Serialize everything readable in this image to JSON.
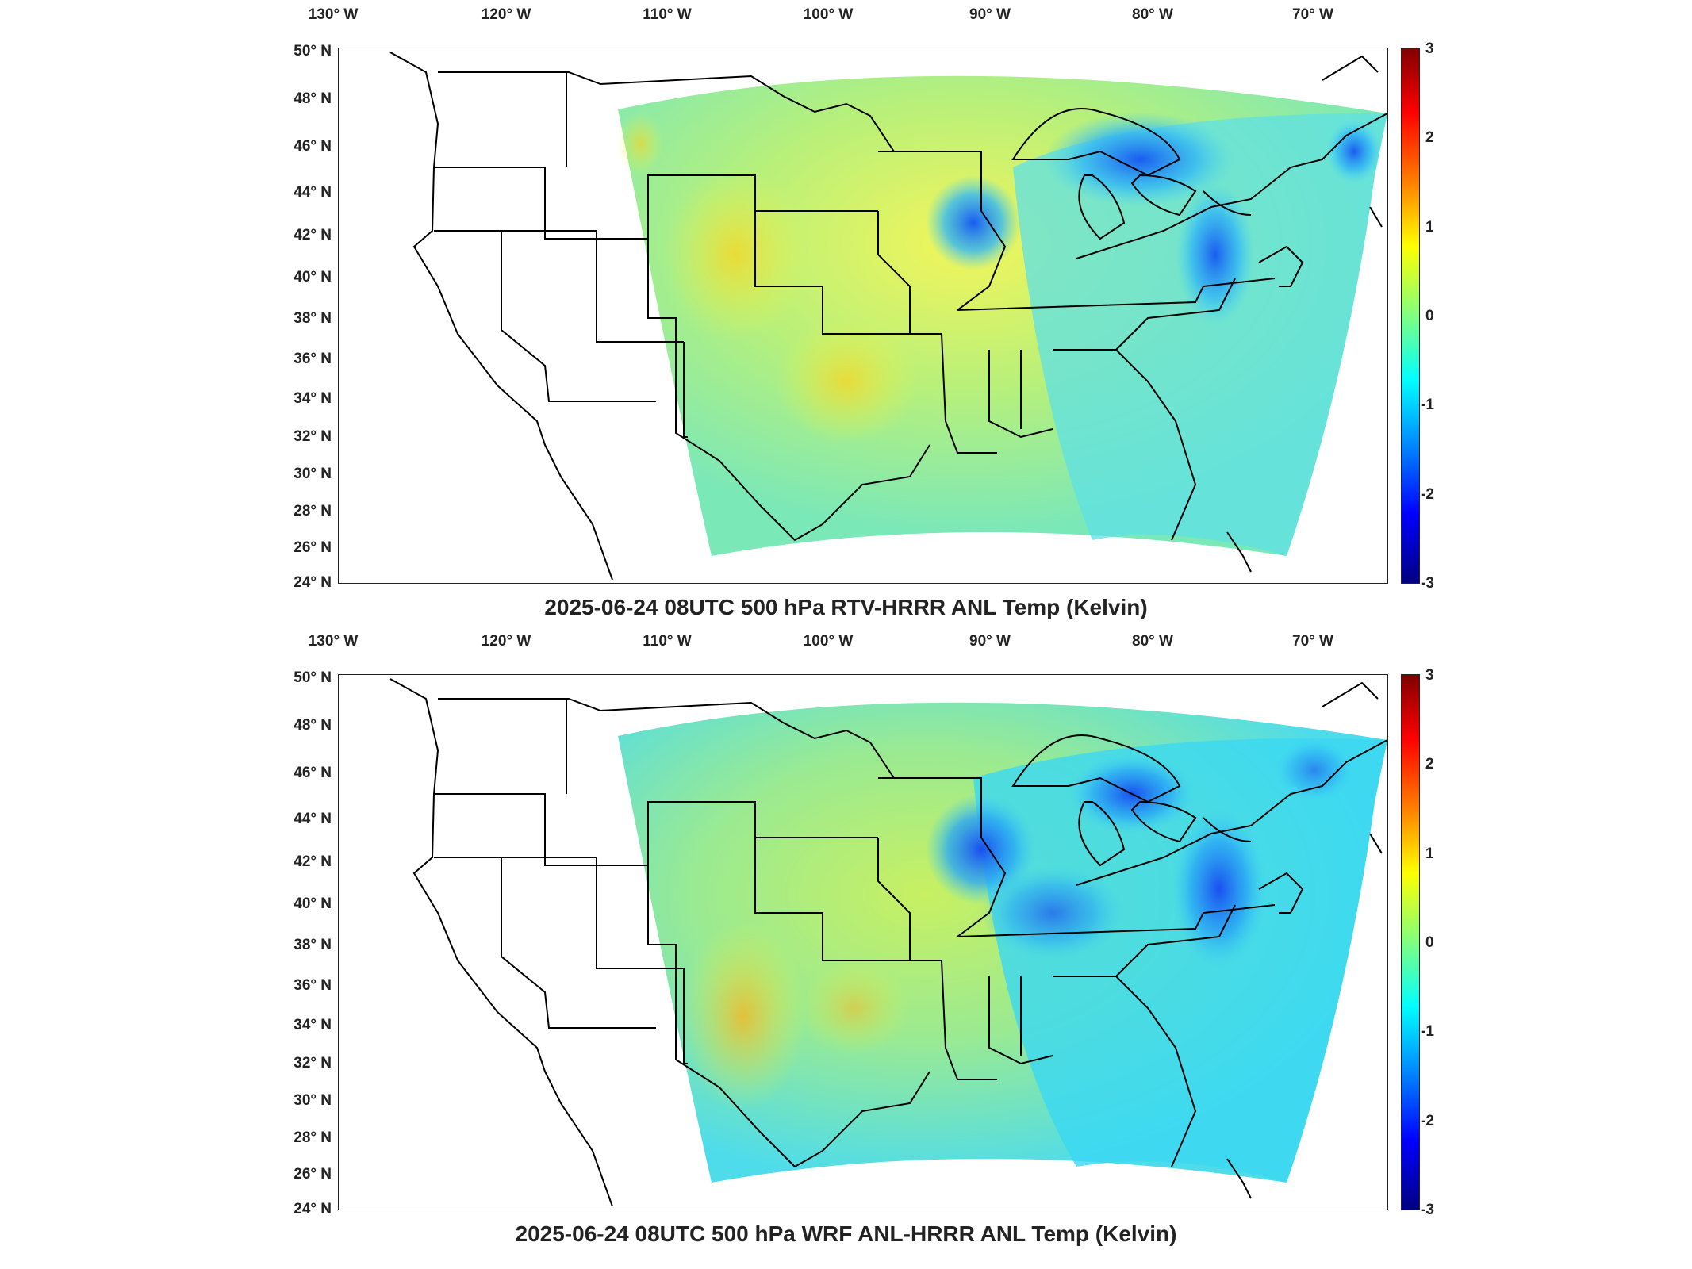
{
  "panels": [
    {
      "title": "2025-06-24 08UTC 500 hPa RTV-HRRR ANL Temp (Kelvin)",
      "lon_ticks": [
        "130° W",
        "120° W",
        "110° W",
        "100° W",
        "90° W",
        "80° W",
        "70° W"
      ],
      "lat_ticks": [
        "50° N",
        "48° N",
        "46° N",
        "44° N",
        "42° N",
        "40° N",
        "38° N",
        "36° N",
        "34° N",
        "32° N",
        "30° N",
        "28° N",
        "26° N",
        "24° N"
      ],
      "colorbar_ticks": [
        "3",
        "2",
        "1",
        "0",
        "-1",
        "-2",
        "-3"
      ]
    },
    {
      "title": "2025-06-24 08UTC 500 hPa WRF ANL-HRRR ANL Temp (Kelvin)",
      "lon_ticks": [
        "130° W",
        "120° W",
        "110° W",
        "100° W",
        "90° W",
        "80° W",
        "70° W"
      ],
      "lat_ticks": [
        "50° N",
        "48° N",
        "46° N",
        "44° N",
        "42° N",
        "40° N",
        "38° N",
        "36° N",
        "34° N",
        "32° N",
        "30° N",
        "28° N",
        "26° N",
        "24° N"
      ],
      "colorbar_ticks": [
        "3",
        "2",
        "1",
        "0",
        "-1",
        "-2",
        "-3"
      ]
    }
  ],
  "colorbar": {
    "min": -3,
    "max": 3,
    "colormap": "jet"
  },
  "colors": {
    "land_outline": "#000000",
    "frame": "#222222",
    "text": "#222222"
  }
}
